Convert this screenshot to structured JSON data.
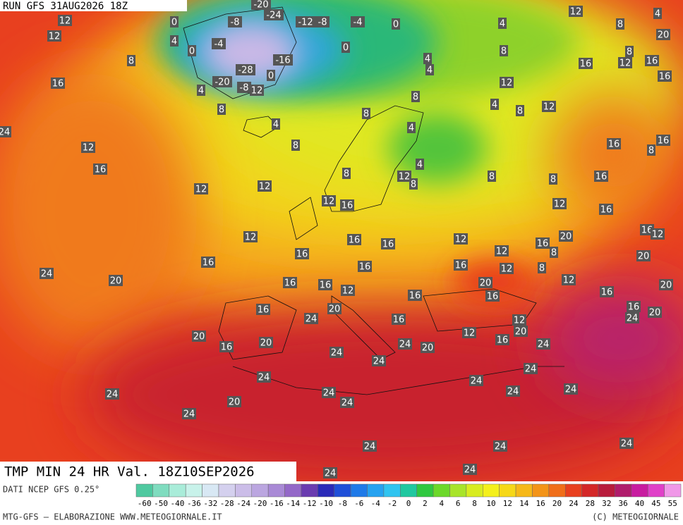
{
  "header": "RUN GFS 31AUG2026 18Z",
  "title": "TMP MIN 24 HR Val. 18Z10SEP2026",
  "source": "DATI NCEP GFS 0.25°",
  "credit": "MTG-GFS — ELABORAZIONE WWW.METEOGIORNALE.IT",
  "copyright": "(C) METEOGIORNALE",
  "colorbar": {
    "ticks": [
      -60,
      -50,
      -40,
      -36,
      -32,
      -28,
      -24,
      -20,
      -16,
      -14,
      -12,
      -10,
      -8,
      -6,
      -4,
      -2,
      0,
      2,
      4,
      6,
      8,
      10,
      12,
      14,
      16,
      20,
      24,
      28,
      32,
      36,
      40,
      45,
      55
    ],
    "colors": [
      "#4fc9a0",
      "#7fdcbf",
      "#a9ecd9",
      "#c8f2ea",
      "#d8e8f4",
      "#d4d0ee",
      "#cbbde8",
      "#bba6e0",
      "#a98ad6",
      "#9468c8",
      "#6a3cb0",
      "#2a2ab8",
      "#1f4fd8",
      "#1f7ae8",
      "#26a2f0",
      "#30c4f0",
      "#20c8a0",
      "#30c840",
      "#6cd82a",
      "#a8e42a",
      "#d8ec20",
      "#f4f01c",
      "#f6d818",
      "#f6b818",
      "#f39418",
      "#f06e1a",
      "#e8401f",
      "#d42828",
      "#b81c3c",
      "#b01c6c",
      "#c81ca0",
      "#e040c8",
      "#f098e8"
    ]
  },
  "labels": [
    -20,
    -24,
    -8,
    -12,
    -8,
    -4,
    0,
    12,
    4,
    12,
    0,
    8,
    12,
    4,
    -4,
    0,
    0,
    4,
    20,
    8,
    8,
    8,
    -16,
    4,
    16,
    12,
    16,
    -28,
    0,
    4,
    16,
    16,
    -20,
    -8,
    12,
    12,
    4,
    8,
    4,
    8,
    12,
    8,
    8,
    4,
    4,
    24,
    8,
    16,
    8,
    16,
    12,
    4,
    16,
    8,
    12,
    8,
    8,
    8,
    16,
    12,
    12,
    12,
    16,
    12,
    16,
    16,
    12,
    12,
    16,
    16,
    12,
    20,
    16,
    8,
    12,
    16,
    16,
    16,
    16,
    12,
    8,
    20,
    24,
    20,
    16,
    16,
    12,
    20,
    16,
    16,
    12,
    16,
    20,
    16,
    20,
    24,
    16,
    16,
    20,
    24,
    12,
    20,
    12,
    16,
    20,
    16,
    20,
    24,
    24,
    20,
    24,
    24,
    24,
    24,
    24,
    24,
    24,
    24,
    24,
    20,
    24,
    24,
    24,
    24,
    24,
    24,
    24
  ]
}
